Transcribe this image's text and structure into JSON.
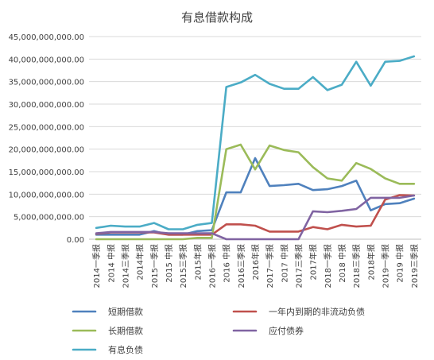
{
  "chart_data": {
    "type": "line",
    "title": "有息借款构成",
    "xlabel": "",
    "ylabel": "",
    "ylim": [
      0,
      45000000000
    ],
    "y_ticks": [
      "45,000,000,000.00",
      "40,000,000,000.00",
      "35,000,000,000.00",
      "30,000,000,000.00",
      "25,000,000,000.00",
      "20,000,000,000.00",
      "15,000,000,000.00",
      "10,000,000,000.00",
      "5,000,000,000.00",
      "0.00"
    ],
    "categories": [
      "2014一季报",
      "2014 中报",
      "2014三季报",
      "2014年报",
      "2015一季报",
      "2015 中报",
      "2015三季报",
      "2015年报",
      "2016一季报",
      "2016 中报",
      "2016三季报",
      "2016年报",
      "2017一季报",
      "2017 中报",
      "2017三季报",
      "2017年报",
      "2018一季报",
      "2018 中报",
      "2018三季报",
      "2018年报",
      "2019一季报",
      "2019 中报",
      "2019三季报"
    ],
    "legend_position": "bottom",
    "series": [
      {
        "name": "短期借款",
        "color": "#4f81bd",
        "values": [
          1000000000,
          1000000000,
          1000000000,
          1000000000,
          1800000000,
          1000000000,
          1000000000,
          1800000000,
          2000000000,
          10400000000,
          10400000000,
          18000000000,
          11800000000,
          12000000000,
          12300000000,
          10900000000,
          11100000000,
          11800000000,
          13000000000,
          6400000000,
          7800000000,
          8000000000,
          9000000000
        ]
      },
      {
        "name": "一年内到期的非流动负债",
        "color": "#c0504d",
        "values": [
          1200000000,
          1500000000,
          1500000000,
          1500000000,
          1500000000,
          1000000000,
          1000000000,
          1000000000,
          1000000000,
          3300000000,
          3300000000,
          3000000000,
          1700000000,
          1700000000,
          1700000000,
          2700000000,
          2200000000,
          3200000000,
          2800000000,
          3000000000,
          8800000000,
          9800000000,
          9700000000
        ]
      },
      {
        "name": "长期借款",
        "color": "#9bbb59",
        "values": [
          0,
          0,
          0,
          0,
          0,
          0,
          0,
          300000000,
          300000000,
          20000000000,
          21000000000,
          15500000000,
          20800000000,
          19800000000,
          19300000000,
          16000000000,
          13500000000,
          13000000000,
          16900000000,
          15600000000,
          13500000000,
          12300000000,
          12300000000
        ]
      },
      {
        "name": "应付债券",
        "color": "#8064a2",
        "values": [
          1300000000,
          1600000000,
          1600000000,
          1600000000,
          1600000000,
          1300000000,
          1300000000,
          1300000000,
          1300000000,
          0,
          0,
          0,
          0,
          0,
          0,
          6200000000,
          6000000000,
          6300000000,
          6700000000,
          9200000000,
          9200000000,
          9200000000,
          9700000000
        ]
      },
      {
        "name": "有息负债",
        "color": "#4bacc6",
        "values": [
          2500000000,
          3000000000,
          2800000000,
          2800000000,
          3600000000,
          2200000000,
          2200000000,
          3200000000,
          3600000000,
          33800000000,
          34800000000,
          36500000000,
          34500000000,
          33400000000,
          33400000000,
          36000000000,
          33100000000,
          34300000000,
          39400000000,
          34100000000,
          39400000000,
          39600000000,
          40600000000
        ]
      }
    ]
  }
}
